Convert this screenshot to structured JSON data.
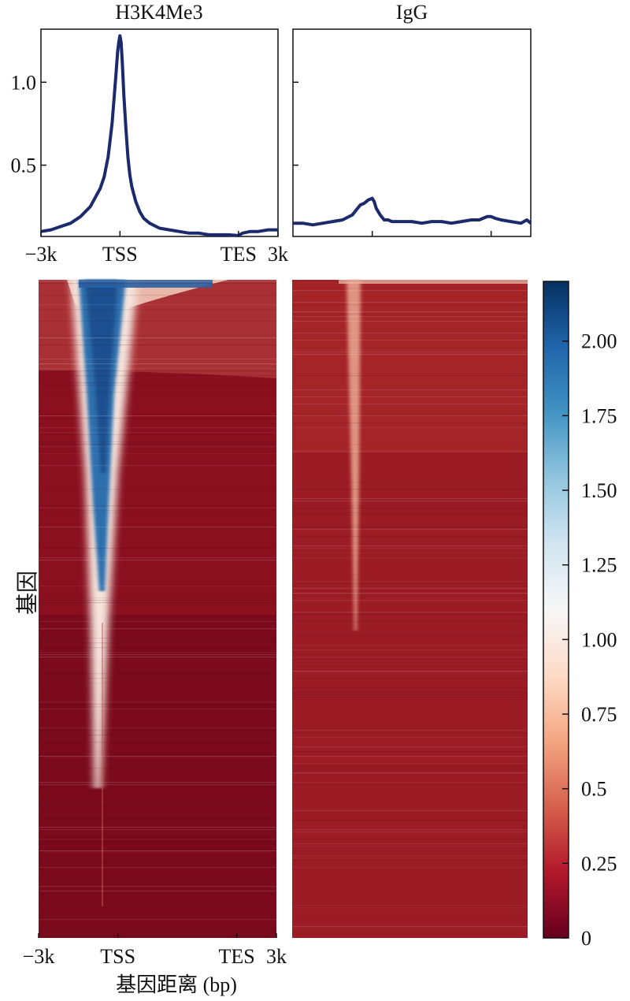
{
  "chart_data": [
    {
      "type": "line",
      "title": "H3K4Me3",
      "xlim": [
        -3000,
        3000
      ],
      "ylim": [
        0.07,
        1.32
      ],
      "yticks": [
        {
          "value": 0.5,
          "label": "0.5"
        },
        {
          "value": 1.0,
          "label": "1.0"
        }
      ],
      "xticks": [
        {
          "value": -3000,
          "label": "−3k"
        },
        {
          "value": -1000,
          "label": "TSS"
        },
        {
          "value": 2000,
          "label": "TES"
        },
        {
          "value": 3000,
          "label": "3k"
        }
      ],
      "series": [
        {
          "color": "#1b2a6b",
          "x": [
            -3000,
            -2750,
            -2500,
            -2250,
            -2000,
            -1750,
            -1500,
            -1400,
            -1300,
            -1200,
            -1150,
            -1100,
            -1060,
            -1030,
            -1000,
            -970,
            -940,
            -900,
            -850,
            -800,
            -750,
            -700,
            -600,
            -500,
            -400,
            -250,
            0,
            250,
            500,
            750,
            1000,
            1250,
            1500,
            1750,
            2000,
            2100,
            2300,
            2500,
            2750,
            3000
          ],
          "y": [
            0.1,
            0.11,
            0.13,
            0.15,
            0.19,
            0.25,
            0.36,
            0.43,
            0.55,
            0.75,
            0.9,
            1.05,
            1.18,
            1.24,
            1.28,
            1.24,
            1.12,
            0.92,
            0.72,
            0.55,
            0.44,
            0.37,
            0.28,
            0.22,
            0.18,
            0.15,
            0.12,
            0.11,
            0.1,
            0.09,
            0.09,
            0.08,
            0.08,
            0.08,
            0.075,
            0.09,
            0.1,
            0.1,
            0.11,
            0.11
          ]
        }
      ]
    },
    {
      "type": "line",
      "title": "IgG",
      "xlim": [
        -3000,
        3000
      ],
      "ylim": [
        0.07,
        1.32
      ],
      "xticks": [
        {
          "value": -1000,
          "label": ""
        },
        {
          "value": 2000,
          "label": ""
        }
      ],
      "series": [
        {
          "color": "#1b2a6b",
          "x": [
            -3000,
            -2750,
            -2500,
            -2250,
            -2000,
            -1750,
            -1500,
            -1400,
            -1300,
            -1200,
            -1100,
            -1000,
            -950,
            -900,
            -800,
            -700,
            -600,
            -500,
            -250,
            0,
            250,
            500,
            750,
            1000,
            1250,
            1500,
            1700,
            1800,
            1900,
            2000,
            2100,
            2250,
            2500,
            2750,
            2900,
            3000
          ],
          "y": [
            0.15,
            0.15,
            0.14,
            0.15,
            0.16,
            0.17,
            0.2,
            0.23,
            0.26,
            0.27,
            0.29,
            0.3,
            0.28,
            0.24,
            0.2,
            0.17,
            0.17,
            0.16,
            0.16,
            0.16,
            0.15,
            0.16,
            0.16,
            0.15,
            0.16,
            0.17,
            0.17,
            0.18,
            0.19,
            0.19,
            0.18,
            0.17,
            0.16,
            0.15,
            0.17,
            0.15
          ]
        }
      ]
    },
    {
      "type": "heatmap",
      "xlabel": "基因距离 (bp)",
      "ylabel": "基因",
      "xticks": [
        {
          "value": -3000,
          "label": "−3k"
        },
        {
          "value": -1000,
          "label": "TSS"
        },
        {
          "value": 2000,
          "label": "TES"
        },
        {
          "value": 3000,
          "label": "3k"
        }
      ],
      "panels": [
        "H3K4Me3",
        "IgG"
      ],
      "colorbar": {
        "min": 0,
        "max": 2.2,
        "ticks": [
          {
            "value": 0,
            "label": "0"
          },
          {
            "value": 0.25,
            "label": "0.25"
          },
          {
            "value": 0.5,
            "label": "0.5"
          },
          {
            "value": 0.75,
            "label": "0.75"
          },
          {
            "value": 1.0,
            "label": "1.00"
          },
          {
            "value": 1.25,
            "label": "1.25"
          },
          {
            "value": 1.5,
            "label": "1.50"
          },
          {
            "value": 1.75,
            "label": "1.75"
          },
          {
            "value": 2.0,
            "label": "2.00"
          }
        ],
        "colors": [
          "#67001f",
          "#b2182b",
          "#d6604d",
          "#f4a582",
          "#fddbc7",
          "#f7f7f7",
          "#d1e5f0",
          "#92c5de",
          "#4393c3",
          "#2166ac",
          "#053061"
        ]
      }
    }
  ]
}
